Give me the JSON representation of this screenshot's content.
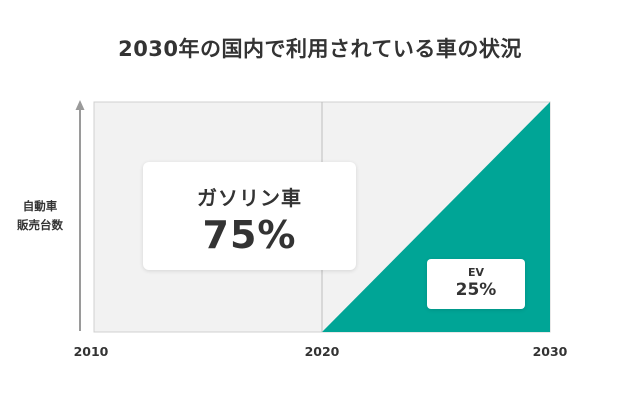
{
  "chart_data": {
    "type": "area",
    "title": "2030年の国内で利用されている車の状況",
    "ylabel_lines": [
      "自動車",
      "販売台数"
    ],
    "x": [
      2010,
      2020,
      2030
    ],
    "xlim": [
      2010,
      2030
    ],
    "ylim": [
      0,
      100
    ],
    "tick_labels": [
      "2010",
      "2020",
      "2030"
    ],
    "series": [
      {
        "name": "ガソリン車",
        "points": [
          [
            2010,
            100
          ],
          [
            2020,
            100
          ],
          [
            2030,
            0
          ]
        ],
        "label": "75%"
      },
      {
        "name": "EV",
        "points": [
          [
            2010,
            0
          ],
          [
            2020,
            0
          ],
          [
            2030,
            100
          ]
        ],
        "label": "25%"
      }
    ],
    "colors": {
      "gas": "#f2f2f2",
      "ev": "#00a596",
      "axis": "#9a9a9a"
    }
  }
}
